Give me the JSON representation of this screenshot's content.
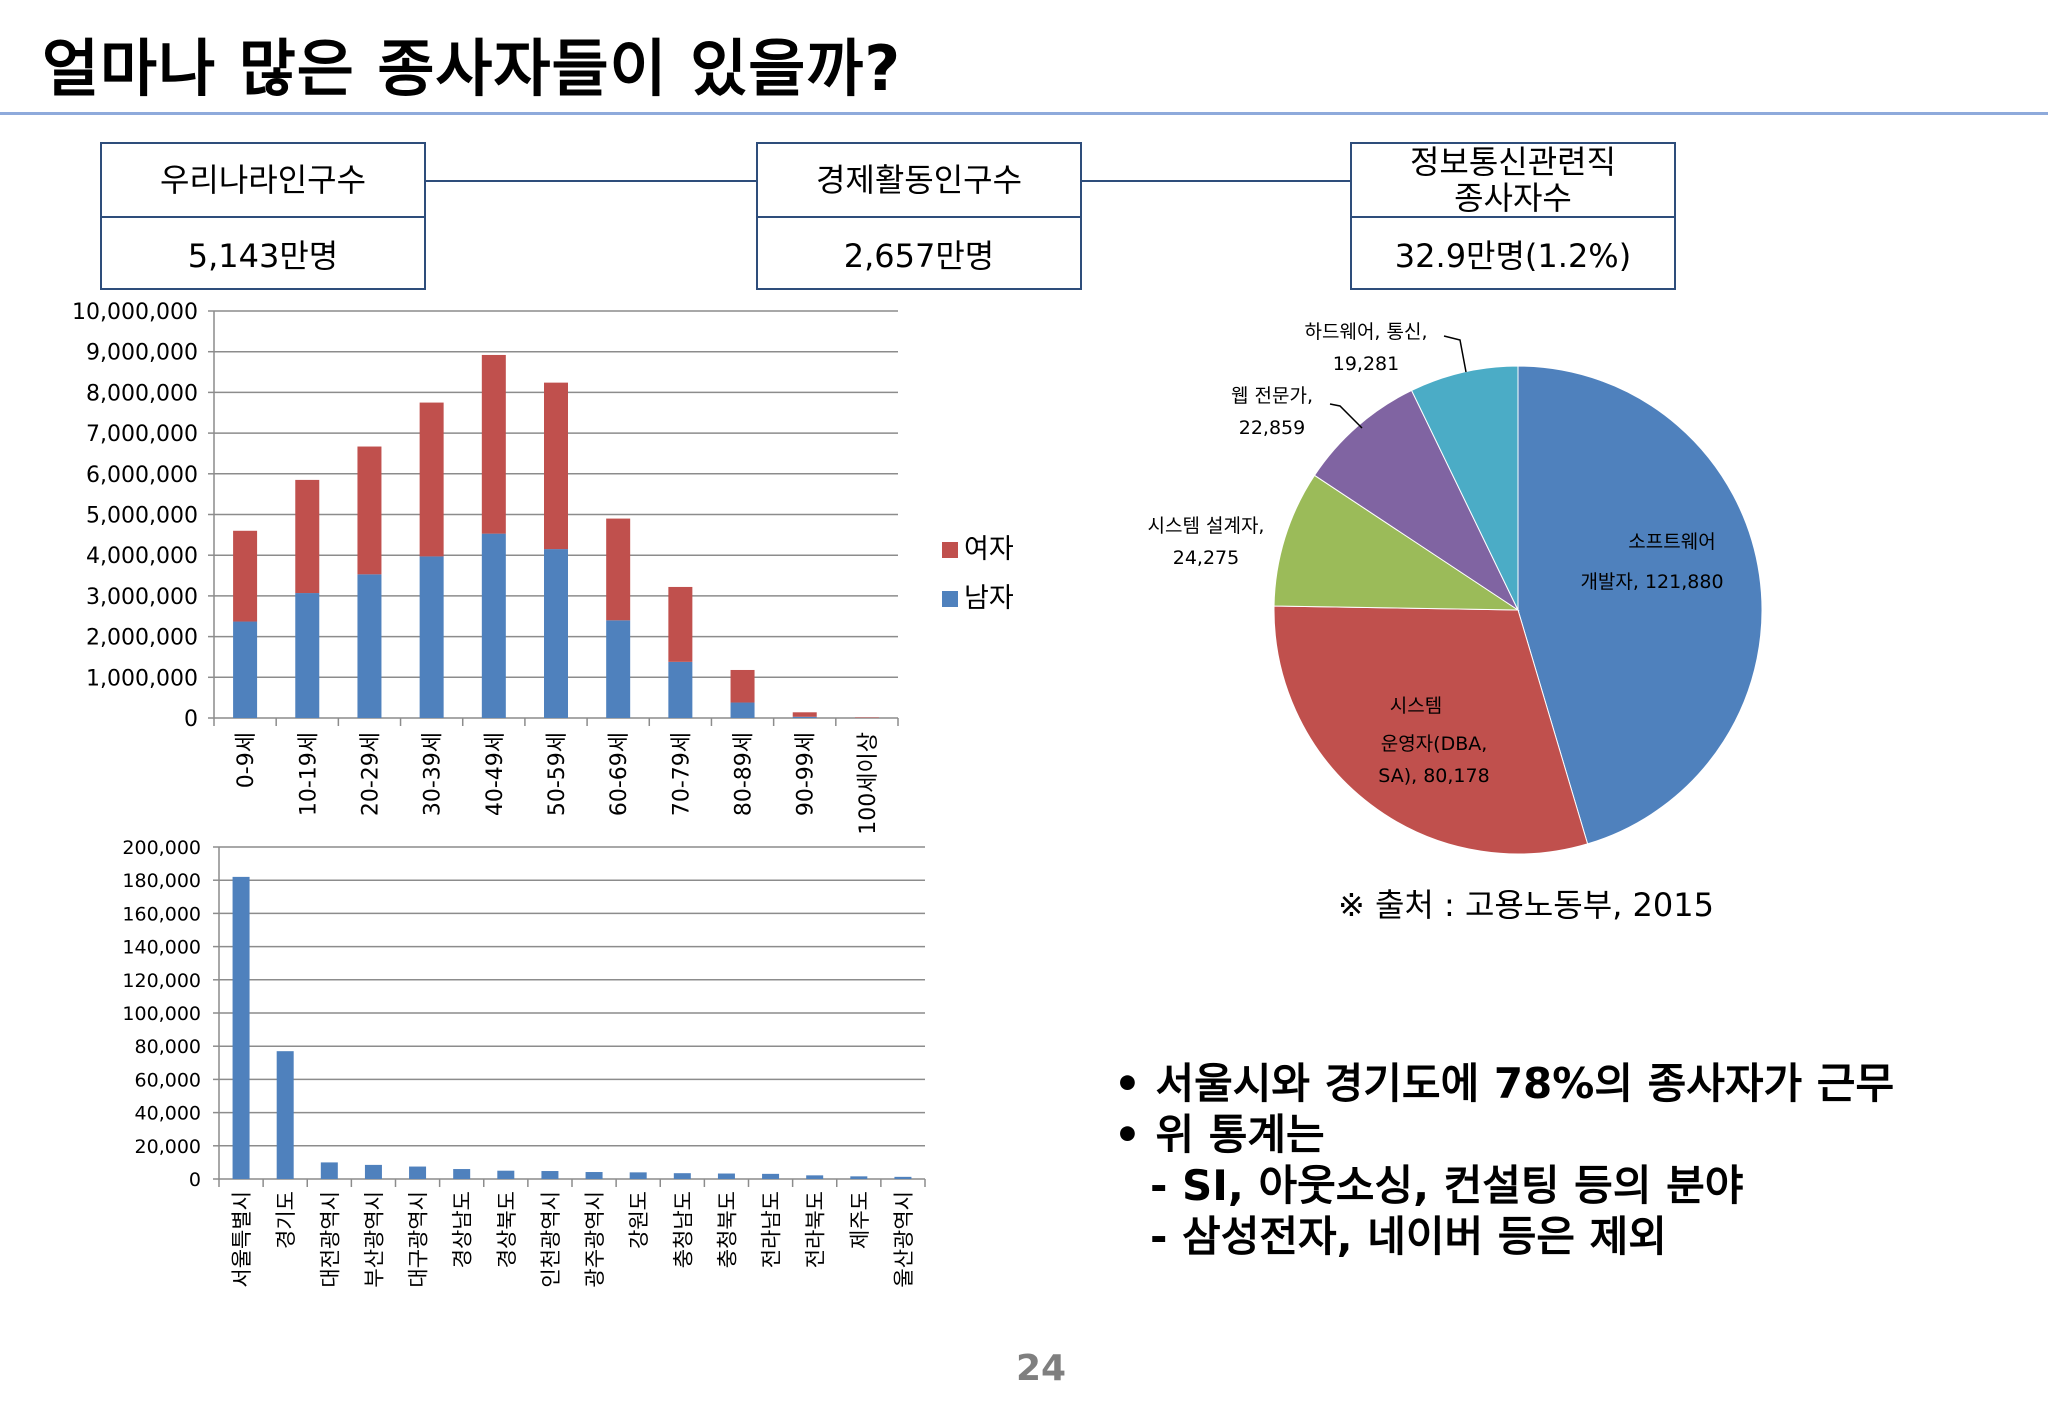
{
  "title": "얼마나 많은 종사자들이 있을까?",
  "boxes": [
    {
      "label": "우리나라인구수",
      "value": "5,143만명"
    },
    {
      "label": "경제활동인구수",
      "value": "2,657만명"
    },
    {
      "label": "정보통신관련직 종사자수",
      "value": "32.9만명(1.2%)"
    }
  ],
  "source": "※ 출처 : 고용노동부, 2015",
  "bullets": [
    {
      "text": "서울시와 경기도에 78%의 종사자가 근무",
      "subs": []
    },
    {
      "text": "위 통계는",
      "subs": [
        "- SI, 아웃소싱, 컨설팅 등의 분야",
        "- 삼성전자, 네이버 등은 제외"
      ]
    }
  ],
  "page_number": "24",
  "colors": {
    "male": "#4f81bd",
    "female": "#c0504d",
    "green": "#9bbb59",
    "purple": "#8064a2",
    "teal": "#4bacc6",
    "rule": "#8eaadb",
    "box_border": "#2e4d7b"
  },
  "chart_data": [
    {
      "type": "bar",
      "stacked": true,
      "categories": [
        "0-9세",
        "10-19세",
        "20-29세",
        "30-39세",
        "40-49세",
        "50-59세",
        "60-69세",
        "70-79세",
        "80-89세",
        "90-99세",
        "100세이상"
      ],
      "series": [
        {
          "name": "남자",
          "values": [
            2370000,
            3070000,
            3530000,
            3970000,
            4530000,
            4150000,
            2400000,
            1380000,
            380000,
            30000,
            2000
          ]
        },
        {
          "name": "여자",
          "values": [
            2230000,
            2780000,
            3140000,
            3780000,
            4390000,
            4090000,
            2500000,
            1840000,
            800000,
            110000,
            12000
          ]
        }
      ],
      "legend_order": [
        "여자",
        "남자"
      ],
      "ylim": [
        0,
        10000000
      ],
      "yticks": [
        "0",
        "1,000,000",
        "2,000,000",
        "3,000,000",
        "4,000,000",
        "5,000,000",
        "6,000,000",
        "7,000,000",
        "8,000,000",
        "9,000,000",
        "10,000,000"
      ],
      "legend": "right",
      "grid": true
    },
    {
      "type": "bar",
      "categories": [
        "서울특별시",
        "경기도",
        "대전광역시",
        "부산광역시",
        "대구광역시",
        "경상남도",
        "경상북도",
        "인천광역시",
        "광주광역시",
        "강원도",
        "충청남도",
        "충청북도",
        "전라남도",
        "전라북도",
        "제주도",
        "울산광역시"
      ],
      "values": [
        182000,
        77000,
        10000,
        8500,
        7500,
        6000,
        5000,
        4800,
        4200,
        4000,
        3500,
        3300,
        3100,
        2200,
        1600,
        1300
      ],
      "ylim": [
        0,
        200000
      ],
      "yticks": [
        "0",
        "20,000",
        "40,000",
        "60,000",
        "80,000",
        "100,000",
        "120,000",
        "140,000",
        "160,000",
        "180,000",
        "200,000"
      ],
      "grid": true
    },
    {
      "type": "pie",
      "slices": [
        {
          "label": "소프트웨어 개발자",
          "value": 121880,
          "value_label": "121,880"
        },
        {
          "label": "시스템 운영자(DBA, SA)",
          "value": 80178,
          "value_label": "80,178"
        },
        {
          "label": "시스템 설계자",
          "value": 24275,
          "value_label": "24,275"
        },
        {
          "label": "웹 전문가",
          "value": 22859,
          "value_label": "22,859"
        },
        {
          "label": "하드웨어, 통신",
          "value": 19281,
          "value_label": "19,281"
        }
      ]
    }
  ]
}
